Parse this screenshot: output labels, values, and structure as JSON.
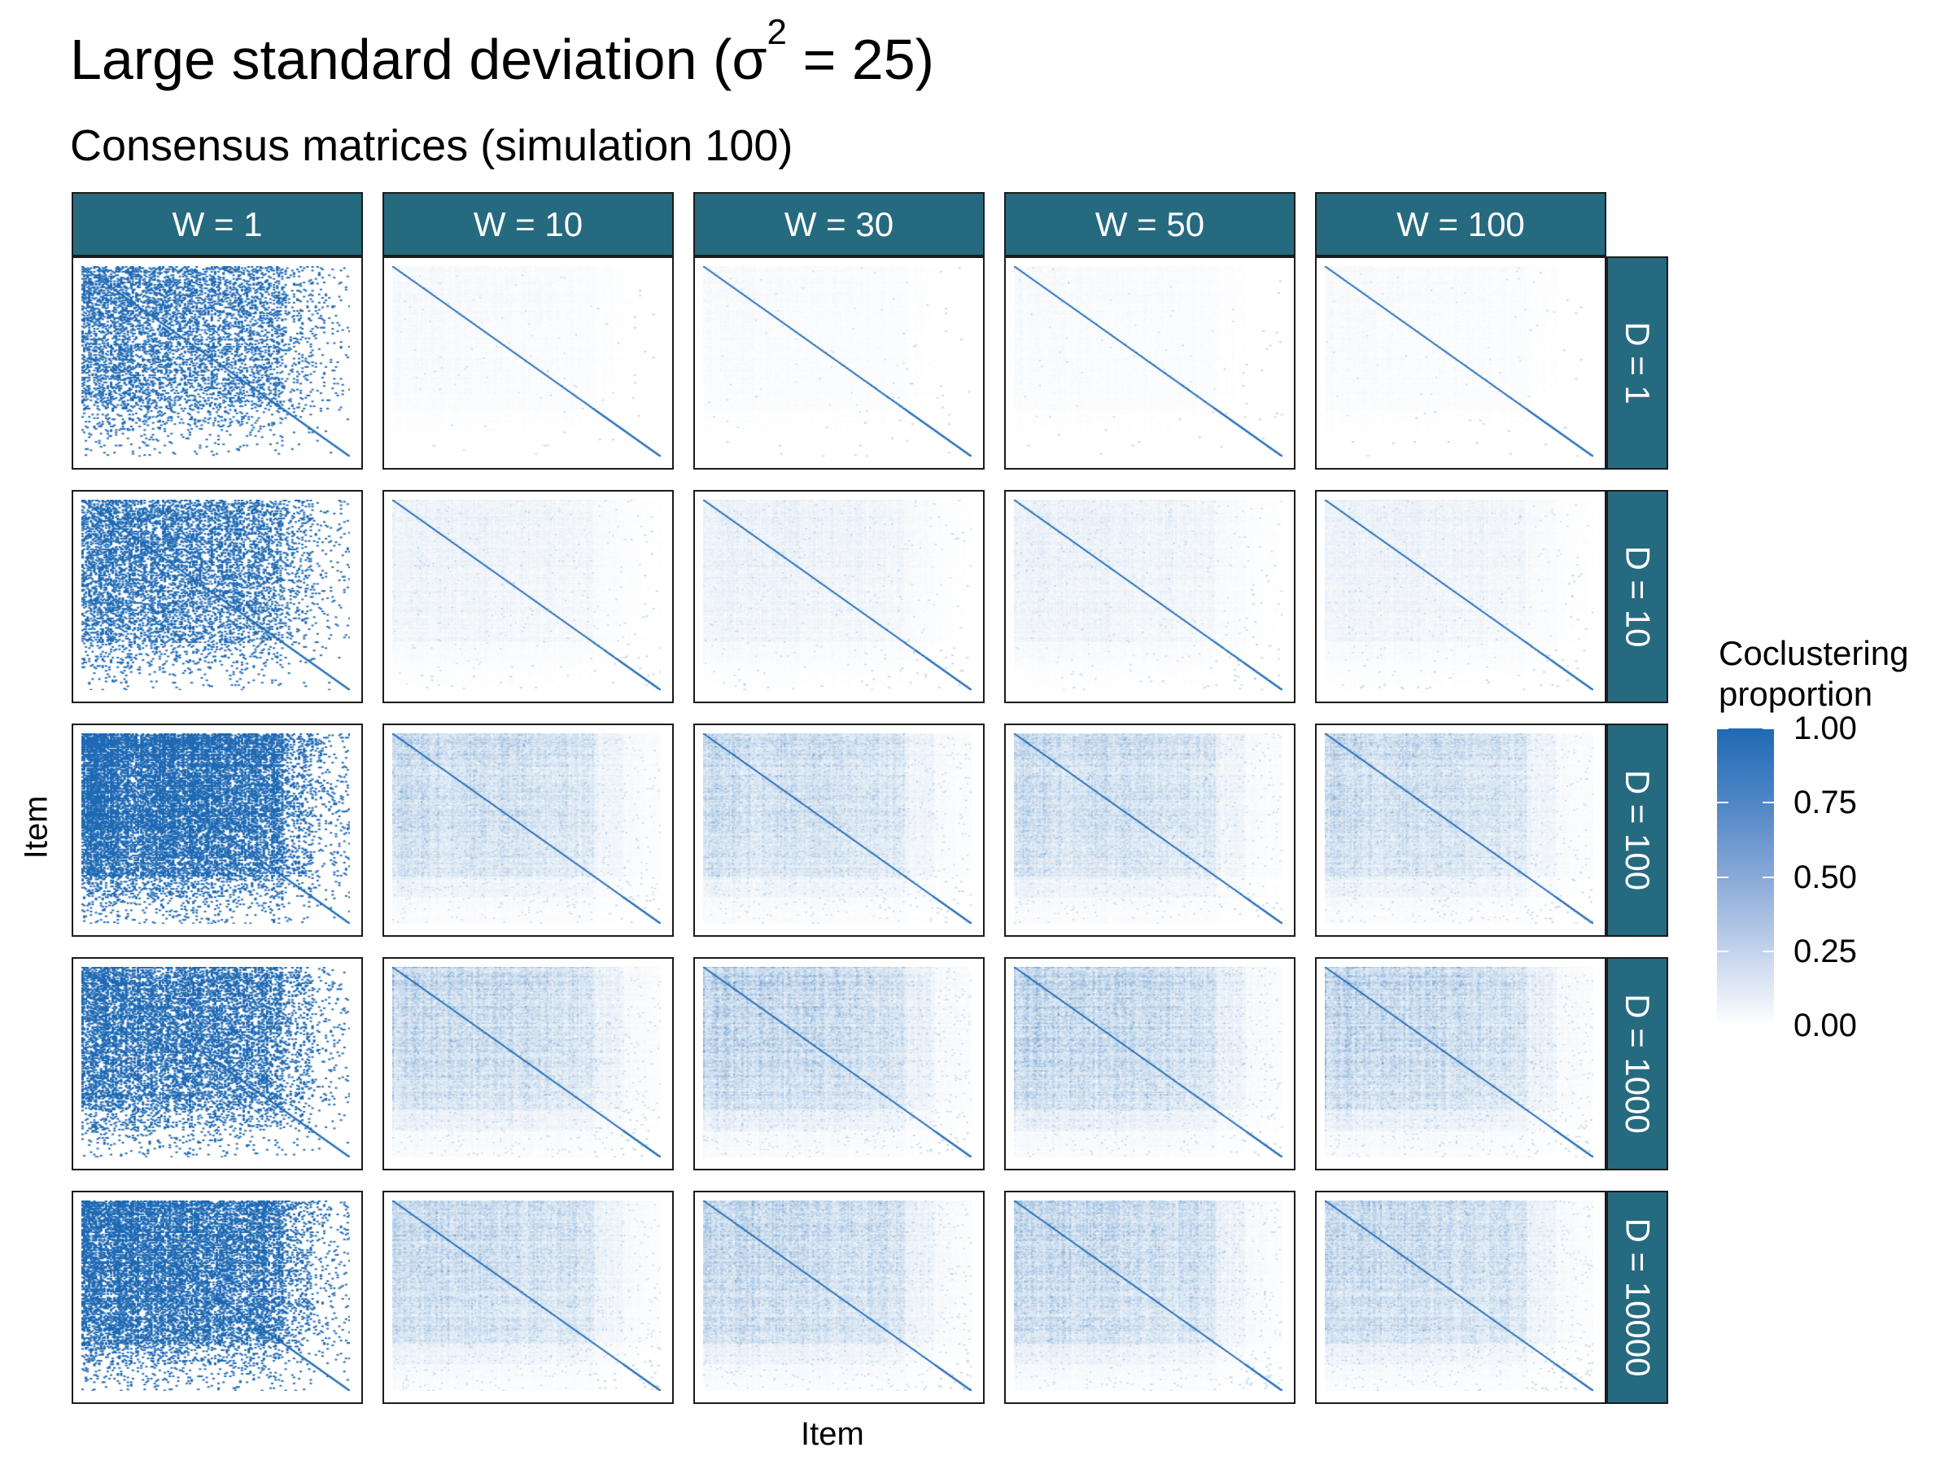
{
  "title": {
    "main": "Large standard deviation (",
    "sigma": "σ",
    "sup": "2",
    "rest": " = 25)"
  },
  "subtitle": "Consensus matrices (simulation 100)",
  "colors": {
    "strip": "#266A80",
    "low": "#ffffff",
    "high": "#1f6ab5"
  },
  "chart_data": {
    "type": "heatmap",
    "title": "Large standard deviation (σ2 = 25)",
    "subtitle": "Consensus matrices (simulation 100)",
    "xlabel": "Item",
    "ylabel": "Item",
    "facet_cols": [
      "W = 1",
      "W = 10",
      "W = 30",
      "W = 50",
      "W = 100"
    ],
    "facet_rows": [
      "D = 1",
      "D = 10",
      "D = 100",
      "D = 1000",
      "D = 10000"
    ],
    "color_scale": {
      "title": "Coclustering proportion",
      "title_lines": [
        "Coclustering",
        "proportion"
      ],
      "min": 0,
      "max": 1,
      "breaks": [
        "1.00",
        "0.75",
        "0.50",
        "0.25",
        "0.00"
      ],
      "low_color": "#ffffff",
      "high_color": "#1f6ab5"
    },
    "panel_density": [
      [
        0.45,
        0.08,
        0.07,
        0.07,
        0.07
      ],
      [
        0.55,
        0.2,
        0.22,
        0.22,
        0.21
      ],
      [
        0.95,
        0.55,
        0.55,
        0.55,
        0.55
      ],
      [
        0.7,
        0.62,
        0.68,
        0.68,
        0.66
      ],
      [
        0.85,
        0.6,
        0.65,
        0.65,
        0.62
      ]
    ],
    "panel_binary": [
      [
        true,
        false,
        false,
        false,
        false
      ],
      [
        true,
        false,
        false,
        false,
        false
      ],
      [
        true,
        false,
        false,
        false,
        false
      ],
      [
        true,
        false,
        false,
        false,
        false
      ],
      [
        true,
        false,
        false,
        false,
        false
      ]
    ]
  }
}
